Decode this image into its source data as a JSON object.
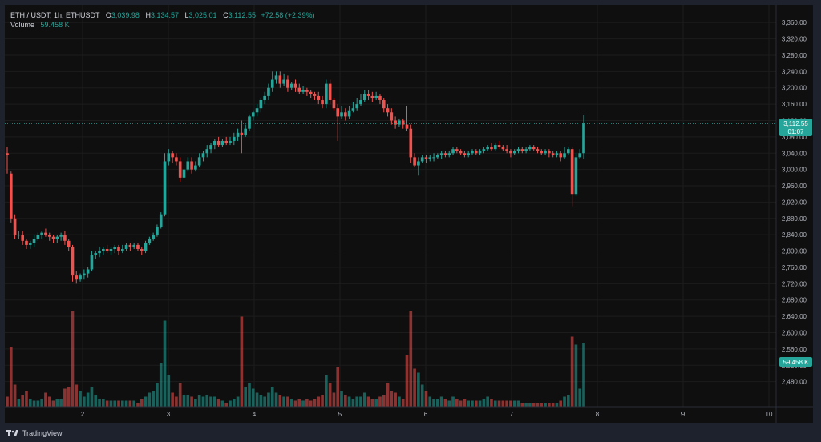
{
  "legend": {
    "symbol": "ETH / USDT, 1h, ETHUSDT",
    "o_label": "O",
    "o_value": "3,039.98",
    "h_label": "H",
    "h_value": "3,134.57",
    "l_label": "L",
    "l_value": "3,025.01",
    "c_label": "C",
    "c_value": "3,112.55",
    "change": "+72.58 (+2.39%)",
    "volume_label": "Volume",
    "volume_value": "59.458 K"
  },
  "price_tag": {
    "price": "3,112.55",
    "countdown": "01:07"
  },
  "volume_tag": "59.458 K",
  "footer": {
    "brand": "TradingView",
    "logo_icon": "tradingview-logo-icon"
  },
  "colors": {
    "up": "#26a69a",
    "down": "#ef5350",
    "background": "#0f0f0f",
    "grid": "#1c1c1c",
    "text": "#b2b5be"
  },
  "chart_data": {
    "type": "candlestick",
    "price_axis": {
      "min": 2440,
      "max": 3380,
      "ticks": [
        "3,360.00",
        "3,320.00",
        "3,280.00",
        "3,240.00",
        "3,200.00",
        "3,160.00",
        "3,120.00",
        "3,080.00",
        "3,040.00",
        "3,000.00",
        "2,960.00",
        "2,920.00",
        "2,880.00",
        "2,840.00",
        "2,800.00",
        "2,760.00",
        "2,720.00",
        "2,680.00",
        "2,640.00",
        "2,600.00",
        "2,560.00",
        "2,520.00",
        "2,480.00"
      ]
    },
    "time_axis": {
      "start": 1.0,
      "end": 10.5,
      "ticks": [
        "2",
        "3",
        "4",
        "5",
        "6",
        "7",
        "8",
        "9",
        "10"
      ]
    },
    "last_price": 3112.55,
    "volume_max": 250,
    "candles": [
      [
        3040,
        3036,
        2990,
        3055,
        25
      ],
      [
        2990,
        2880,
        2870,
        2995,
        150
      ],
      [
        2880,
        2840,
        2830,
        2890,
        55
      ],
      [
        2840,
        2840,
        2830,
        2850,
        20
      ],
      [
        2840,
        2825,
        2815,
        2850,
        30
      ],
      [
        2825,
        2815,
        2805,
        2830,
        40
      ],
      [
        2815,
        2820,
        2805,
        2825,
        20
      ],
      [
        2820,
        2830,
        2810,
        2840,
        15
      ],
      [
        2830,
        2840,
        2825,
        2845,
        15
      ],
      [
        2840,
        2845,
        2830,
        2850,
        20
      ],
      [
        2845,
        2840,
        2835,
        2855,
        35
      ],
      [
        2840,
        2835,
        2825,
        2845,
        25
      ],
      [
        2835,
        2830,
        2820,
        2840,
        15
      ],
      [
        2830,
        2835,
        2820,
        2840,
        20
      ],
      [
        2835,
        2840,
        2825,
        2845,
        20
      ],
      [
        2840,
        2825,
        2815,
        2850,
        45
      ],
      [
        2825,
        2810,
        2800,
        2830,
        50
      ],
      [
        2810,
        2740,
        2725,
        2815,
        240
      ],
      [
        2740,
        2730,
        2720,
        2750,
        55
      ],
      [
        2730,
        2740,
        2725,
        2745,
        40
      ],
      [
        2740,
        2745,
        2730,
        2755,
        25
      ],
      [
        2745,
        2755,
        2735,
        2760,
        35
      ],
      [
        2755,
        2790,
        2750,
        2800,
        50
      ],
      [
        2790,
        2795,
        2780,
        2800,
        30
      ],
      [
        2795,
        2800,
        2785,
        2810,
        20
      ],
      [
        2800,
        2805,
        2790,
        2810,
        20
      ],
      [
        2805,
        2800,
        2795,
        2815,
        15
      ],
      [
        2800,
        2805,
        2790,
        2810,
        15
      ],
      [
        2805,
        2810,
        2795,
        2815,
        15
      ],
      [
        2810,
        2800,
        2790,
        2815,
        15
      ],
      [
        2800,
        2805,
        2795,
        2815,
        15
      ],
      [
        2805,
        2815,
        2800,
        2820,
        15
      ],
      [
        2815,
        2810,
        2800,
        2820,
        15
      ],
      [
        2810,
        2815,
        2805,
        2820,
        15
      ],
      [
        2815,
        2805,
        2800,
        2820,
        10
      ],
      [
        2805,
        2800,
        2790,
        2810,
        20
      ],
      [
        2800,
        2820,
        2795,
        2825,
        25
      ],
      [
        2820,
        2830,
        2815,
        2835,
        35
      ],
      [
        2830,
        2840,
        2825,
        2845,
        40
      ],
      [
        2840,
        2860,
        2835,
        2865,
        60
      ],
      [
        2860,
        2890,
        2855,
        2895,
        110
      ],
      [
        2890,
        3020,
        2885,
        3040,
        215
      ],
      [
        3020,
        3040,
        3010,
        3050,
        80
      ],
      [
        3040,
        3030,
        3015,
        3045,
        35
      ],
      [
        3030,
        3020,
        3010,
        3040,
        25
      ],
      [
        3020,
        2980,
        2970,
        3030,
        60
      ],
      [
        2980,
        3000,
        2975,
        3010,
        30
      ],
      [
        3000,
        3020,
        2995,
        3030,
        30
      ],
      [
        3020,
        3000,
        2990,
        3030,
        25
      ],
      [
        3000,
        3010,
        2995,
        3020,
        20
      ],
      [
        3010,
        3030,
        3005,
        3040,
        30
      ],
      [
        3030,
        3040,
        3020,
        3045,
        25
      ],
      [
        3040,
        3050,
        3030,
        3060,
        30
      ],
      [
        3050,
        3060,
        3040,
        3065,
        25
      ],
      [
        3060,
        3070,
        3050,
        3075,
        25
      ],
      [
        3070,
        3060,
        3055,
        3080,
        20
      ],
      [
        3060,
        3070,
        3055,
        3075,
        15
      ],
      [
        3070,
        3065,
        3060,
        3080,
        10
      ],
      [
        3065,
        3070,
        3060,
        3080,
        15
      ],
      [
        3070,
        3080,
        3060,
        3090,
        20
      ],
      [
        3080,
        3090,
        3070,
        3100,
        25
      ],
      [
        3090,
        3085,
        3040,
        3120,
        225
      ],
      [
        3085,
        3100,
        3080,
        3110,
        50
      ],
      [
        3100,
        3130,
        3095,
        3135,
        60
      ],
      [
        3130,
        3140,
        3120,
        3145,
        45
      ],
      [
        3140,
        3150,
        3130,
        3160,
        35
      ],
      [
        3150,
        3170,
        3140,
        3175,
        30
      ],
      [
        3170,
        3180,
        3160,
        3190,
        25
      ],
      [
        3180,
        3200,
        3170,
        3210,
        35
      ],
      [
        3200,
        3220,
        3190,
        3240,
        50
      ],
      [
        3220,
        3230,
        3210,
        3240,
        35
      ],
      [
        3230,
        3210,
        3200,
        3240,
        30
      ],
      [
        3210,
        3220,
        3205,
        3235,
        25
      ],
      [
        3220,
        3200,
        3190,
        3230,
        25
      ],
      [
        3200,
        3210,
        3195,
        3215,
        20
      ],
      [
        3210,
        3200,
        3190,
        3220,
        15
      ],
      [
        3200,
        3190,
        3185,
        3210,
        20
      ],
      [
        3190,
        3195,
        3185,
        3205,
        15
      ],
      [
        3195,
        3190,
        3180,
        3200,
        20
      ],
      [
        3190,
        3185,
        3175,
        3195,
        15
      ],
      [
        3185,
        3180,
        3170,
        3190,
        20
      ],
      [
        3180,
        3170,
        3160,
        3190,
        25
      ],
      [
        3170,
        3160,
        3150,
        3180,
        30
      ],
      [
        3160,
        3210,
        3150,
        3220,
        80
      ],
      [
        3210,
        3170,
        3160,
        3220,
        60
      ],
      [
        3170,
        3150,
        3145,
        3175,
        35
      ],
      [
        3150,
        3130,
        3070,
        3160,
        100
      ],
      [
        3130,
        3140,
        3125,
        3155,
        40
      ],
      [
        3140,
        3130,
        3120,
        3150,
        30
      ],
      [
        3130,
        3145,
        3125,
        3155,
        25
      ],
      [
        3145,
        3150,
        3140,
        3165,
        20
      ],
      [
        3150,
        3160,
        3145,
        3175,
        25
      ],
      [
        3160,
        3170,
        3155,
        3185,
        25
      ],
      [
        3170,
        3185,
        3165,
        3195,
        35
      ],
      [
        3185,
        3180,
        3170,
        3195,
        25
      ],
      [
        3180,
        3175,
        3165,
        3190,
        20
      ],
      [
        3175,
        3180,
        3170,
        3190,
        20
      ],
      [
        3180,
        3170,
        3160,
        3185,
        25
      ],
      [
        3170,
        3150,
        3140,
        3175,
        30
      ],
      [
        3150,
        3140,
        3130,
        3160,
        60
      ],
      [
        3140,
        3120,
        3110,
        3150,
        40
      ],
      [
        3120,
        3110,
        3100,
        3130,
        35
      ],
      [
        3110,
        3120,
        3105,
        3125,
        25
      ],
      [
        3120,
        3110,
        3100,
        3125,
        20
      ],
      [
        3110,
        3100,
        3095,
        3155,
        130
      ],
      [
        3100,
        3030,
        3015,
        3110,
        240
      ],
      [
        3030,
        3010,
        3005,
        3040,
        95
      ],
      [
        3010,
        3020,
        2985,
        3030,
        85
      ],
      [
        3020,
        3030,
        3015,
        3035,
        55
      ],
      [
        3030,
        3025,
        3015,
        3035,
        40
      ],
      [
        3025,
        3030,
        3020,
        3035,
        25
      ],
      [
        3030,
        3030,
        3020,
        3040,
        20
      ],
      [
        3030,
        3035,
        3025,
        3040,
        20
      ],
      [
        3035,
        3040,
        3025,
        3045,
        25
      ],
      [
        3040,
        3035,
        3030,
        3045,
        20
      ],
      [
        3035,
        3040,
        3030,
        3045,
        15
      ],
      [
        3040,
        3050,
        3035,
        3055,
        25
      ],
      [
        3050,
        3045,
        3040,
        3055,
        20
      ],
      [
        3045,
        3040,
        3035,
        3050,
        15
      ],
      [
        3040,
        3035,
        3030,
        3045,
        20
      ],
      [
        3035,
        3040,
        3030,
        3045,
        15
      ],
      [
        3040,
        3045,
        3035,
        3050,
        15
      ],
      [
        3045,
        3040,
        3035,
        3050,
        15
      ],
      [
        3040,
        3045,
        3035,
        3050,
        15
      ],
      [
        3045,
        3050,
        3040,
        3055,
        20
      ],
      [
        3050,
        3055,
        3045,
        3060,
        25
      ],
      [
        3055,
        3050,
        3045,
        3065,
        20
      ],
      [
        3050,
        3060,
        3045,
        3065,
        15
      ],
      [
        3060,
        3055,
        3050,
        3070,
        15
      ],
      [
        3055,
        3050,
        3045,
        3060,
        15
      ],
      [
        3050,
        3045,
        3040,
        3060,
        15
      ],
      [
        3045,
        3040,
        3030,
        3050,
        15
      ],
      [
        3040,
        3045,
        3035,
        3050,
        15
      ],
      [
        3045,
        3050,
        3040,
        3055,
        15
      ],
      [
        3050,
        3045,
        3040,
        3055,
        10
      ],
      [
        3045,
        3050,
        3040,
        3055,
        10
      ],
      [
        3050,
        3055,
        3045,
        3060,
        10
      ],
      [
        3055,
        3050,
        3045,
        3060,
        10
      ],
      [
        3050,
        3045,
        3040,
        3055,
        10
      ],
      [
        3045,
        3040,
        3035,
        3050,
        10
      ],
      [
        3040,
        3045,
        3035,
        3050,
        10
      ],
      [
        3045,
        3040,
        3030,
        3050,
        10
      ],
      [
        3040,
        3035,
        3030,
        3045,
        10
      ],
      [
        3035,
        3040,
        3030,
        3045,
        10
      ],
      [
        3040,
        3030,
        3020,
        3045,
        15
      ],
      [
        3030,
        3040,
        3025,
        3055,
        25
      ],
      [
        3040,
        3050,
        3035,
        3055,
        30
      ],
      [
        3050,
        2940,
        2910,
        3055,
        175
      ],
      [
        2940,
        3030,
        2935,
        3040,
        155
      ],
      [
        3030,
        3040,
        3025,
        3050,
        45
      ],
      [
        3040,
        3112.55,
        3025,
        3134.57,
        160
      ]
    ]
  }
}
